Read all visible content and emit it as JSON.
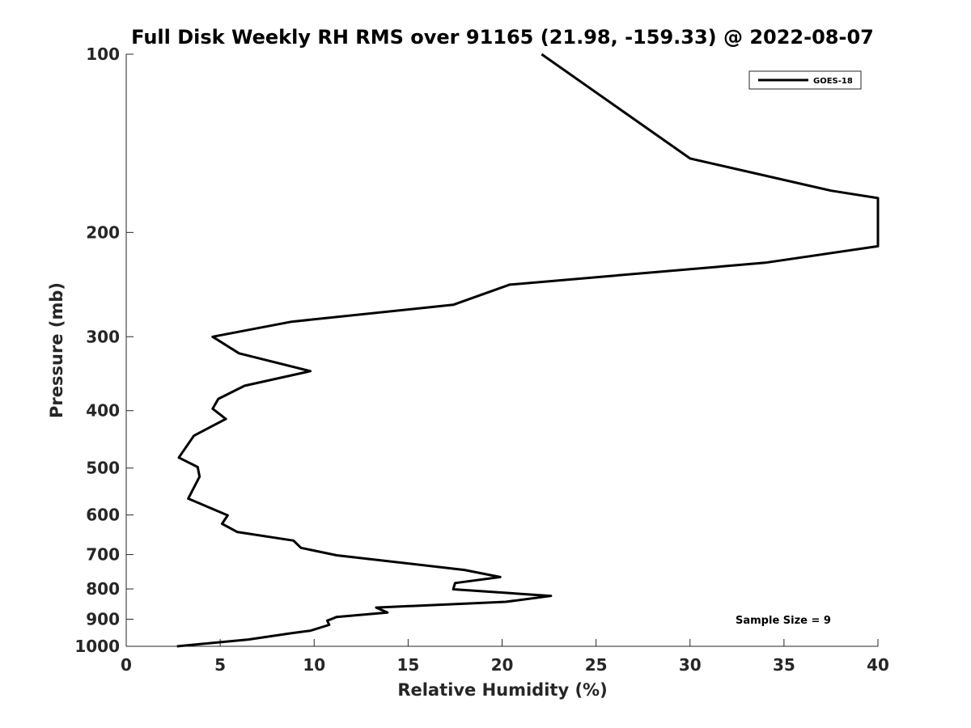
{
  "chart_data": {
    "type": "line",
    "title": "Full Disk Weekly RH RMS over 91165 (21.98, -159.33) @ 2022-08-07",
    "xlabel": "Relative Humidity (%)",
    "ylabel": "Pressure (mb)",
    "xlim": [
      0,
      40
    ],
    "ylim": [
      100,
      1000
    ],
    "yscale": "log",
    "yreversed": true,
    "grid": false,
    "legend_position": "top-right",
    "x_ticks": [
      0,
      5,
      10,
      15,
      20,
      25,
      30,
      35,
      40
    ],
    "y_ticks": [
      100,
      200,
      300,
      400,
      500,
      600,
      700,
      800,
      900,
      1000
    ],
    "series": [
      {
        "name": "GOES-18",
        "color": "#000000",
        "points": [
          [
            22.1,
            100
          ],
          [
            30.0,
            150
          ],
          [
            37.5,
            170
          ],
          [
            40.0,
            175
          ],
          [
            40.0,
            211
          ],
          [
            34.0,
            225
          ],
          [
            20.4,
            245
          ],
          [
            17.4,
            265
          ],
          [
            8.8,
            283
          ],
          [
            4.6,
            300
          ],
          [
            6.0,
            320
          ],
          [
            9.8,
            343
          ],
          [
            6.3,
            363
          ],
          [
            4.9,
            382
          ],
          [
            4.6,
            397
          ],
          [
            5.3,
            413
          ],
          [
            3.6,
            441
          ],
          [
            2.8,
            480
          ],
          [
            3.8,
            498
          ],
          [
            3.9,
            517
          ],
          [
            3.3,
            563
          ],
          [
            5.4,
            601
          ],
          [
            5.1,
            621
          ],
          [
            5.9,
            641
          ],
          [
            8.9,
            663
          ],
          [
            9.3,
            682
          ],
          [
            11.2,
            702
          ],
          [
            18.0,
            743
          ],
          [
            19.9,
            764
          ],
          [
            17.5,
            782
          ],
          [
            17.4,
            801
          ],
          [
            22.6,
            822
          ],
          [
            20.2,
            841
          ],
          [
            13.3,
            860
          ],
          [
            13.9,
            877
          ],
          [
            11.2,
            892
          ],
          [
            10.7,
            905
          ],
          [
            10.8,
            920
          ],
          [
            9.8,
            941
          ],
          [
            8.8,
            950
          ],
          [
            6.5,
            974
          ],
          [
            2.7,
            1000
          ]
        ]
      }
    ],
    "annotations": [
      "Sample Size = 9"
    ]
  }
}
